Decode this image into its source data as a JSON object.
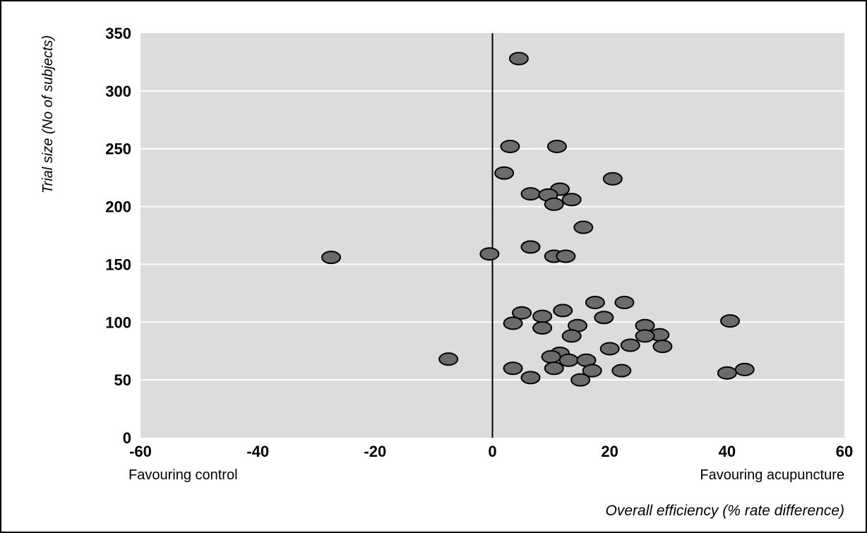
{
  "chart_data": {
    "type": "scatter",
    "xlabel": "Overall efficiency (% rate difference)",
    "ylabel": "Trial size (No of subjects)",
    "x_left_label": "Favouring control",
    "x_right_label": "Favouring acupuncture",
    "xlim": [
      -60,
      60
    ],
    "ylim": [
      0,
      350
    ],
    "x_ticks": [
      -60,
      -40,
      -20,
      0,
      20,
      40,
      60
    ],
    "y_ticks": [
      0,
      50,
      100,
      150,
      200,
      250,
      300,
      350
    ],
    "grid": "horizontal",
    "reference_line_x": 0,
    "colors": {
      "plot_background": "#dcdcdc",
      "gridline": "#ffffff",
      "marker_fill": "#6b6b6b",
      "marker_stroke": "#000000"
    },
    "points": [
      {
        "x": 4.5,
        "y": 328
      },
      {
        "x": 3.0,
        "y": 252
      },
      {
        "x": 11.0,
        "y": 252
      },
      {
        "x": 2.0,
        "y": 229
      },
      {
        "x": 20.5,
        "y": 224
      },
      {
        "x": 11.5,
        "y": 215
      },
      {
        "x": 6.5,
        "y": 211
      },
      {
        "x": 9.5,
        "y": 210
      },
      {
        "x": 13.5,
        "y": 206
      },
      {
        "x": 10.5,
        "y": 202
      },
      {
        "x": 15.5,
        "y": 182
      },
      {
        "x": 6.5,
        "y": 165
      },
      {
        "x": -0.5,
        "y": 159
      },
      {
        "x": 10.5,
        "y": 157
      },
      {
        "x": 12.5,
        "y": 157
      },
      {
        "x": -27.5,
        "y": 156
      },
      {
        "x": 17.5,
        "y": 117
      },
      {
        "x": 22.5,
        "y": 117
      },
      {
        "x": 12.0,
        "y": 110
      },
      {
        "x": 5.0,
        "y": 108
      },
      {
        "x": 8.5,
        "y": 105
      },
      {
        "x": 19.0,
        "y": 104
      },
      {
        "x": 40.5,
        "y": 101
      },
      {
        "x": 3.5,
        "y": 99
      },
      {
        "x": 14.5,
        "y": 97
      },
      {
        "x": 26.0,
        "y": 97
      },
      {
        "x": 8.5,
        "y": 95
      },
      {
        "x": 28.5,
        "y": 89
      },
      {
        "x": 13.5,
        "y": 88
      },
      {
        "x": 26.0,
        "y": 88
      },
      {
        "x": 23.5,
        "y": 80
      },
      {
        "x": 29.0,
        "y": 79
      },
      {
        "x": 20.0,
        "y": 77
      },
      {
        "x": 11.5,
        "y": 73
      },
      {
        "x": 10.0,
        "y": 70
      },
      {
        "x": -7.5,
        "y": 68
      },
      {
        "x": 13.0,
        "y": 67
      },
      {
        "x": 16.0,
        "y": 67
      },
      {
        "x": 3.5,
        "y": 60
      },
      {
        "x": 10.5,
        "y": 60
      },
      {
        "x": 43.0,
        "y": 59
      },
      {
        "x": 17.0,
        "y": 58
      },
      {
        "x": 22.0,
        "y": 58
      },
      {
        "x": 40.0,
        "y": 56
      },
      {
        "x": 6.5,
        "y": 52
      },
      {
        "x": 15.0,
        "y": 50
      }
    ]
  }
}
